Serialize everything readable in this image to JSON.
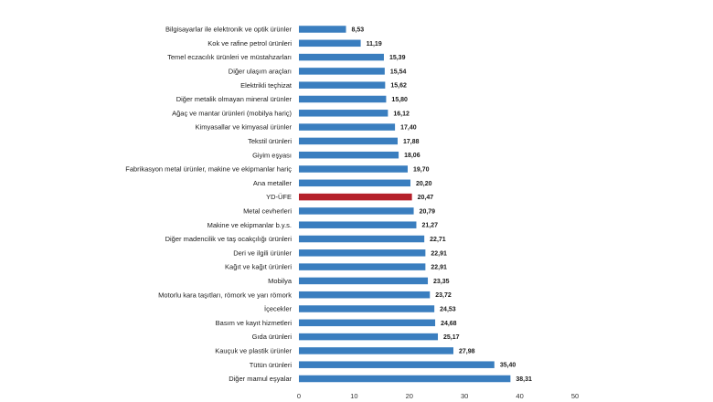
{
  "chart_data": {
    "type": "bar",
    "orientation": "horizontal",
    "title": "",
    "xlabel": "",
    "ylabel": "",
    "xlim": [
      0,
      50
    ],
    "xticks": [
      0,
      10,
      20,
      30,
      40,
      50
    ],
    "grid": false,
    "legend": "none",
    "colors": {
      "default": "#3a7ebf",
      "highlight": "#b5202a"
    },
    "highlight_category": "YD-ÜFE",
    "categories": [
      "Bilgisayarlar ile elektronik ve optik ürünler",
      "Kok ve rafine petrol ürünleri",
      "Temel eczacılık ürünleri ve müstahzarları",
      "Diğer ulaşım araçları",
      "Elektrikli teçhizat",
      "Diğer metalik olmayan mineral ürünler",
      "Ağaç ve mantar ürünleri (mobilya hariç)",
      "Kimyasallar ve kimyasal ürünler",
      "Tekstil ürünleri",
      "Giyim eşyası",
      "Fabrikasyon metal ürünler, makine ve ekipmanlar hariç",
      "Ana metaller",
      "YD-ÜFE",
      "Metal cevherleri",
      "Makine ve ekipmanlar b.y.s.",
      "Diğer madencilik ve taş ocakçılığı ürünleri",
      "Deri ve ilgili ürünler",
      "Kağıt ve kağıt ürünleri",
      "Mobilya",
      "Motorlu kara taşıtları, römork ve yarı römork",
      "İçecekler",
      "Basım ve kayıt hizmetleri",
      "Gıda ürünleri",
      "Kauçuk ve plastik ürünler",
      "Tütün ürünleri",
      "Diğer mamul eşyalar"
    ],
    "values": [
      8.53,
      11.19,
      15.39,
      15.54,
      15.62,
      15.8,
      16.12,
      17.4,
      17.88,
      18.06,
      19.7,
      20.2,
      20.47,
      20.79,
      21.27,
      22.71,
      22.91,
      22.91,
      23.35,
      23.72,
      24.53,
      24.68,
      25.17,
      27.98,
      35.4,
      38.31
    ],
    "value_labels": [
      "8,53",
      "11,19",
      "15,39",
      "15,54",
      "15,62",
      "15,80",
      "16,12",
      "17,40",
      "17,88",
      "18,06",
      "19,70",
      "20,20",
      "20,47",
      "20,79",
      "21,27",
      "22,71",
      "22,91",
      "22,91",
      "23,35",
      "23,72",
      "24,53",
      "24,68",
      "25,17",
      "27,98",
      "35,40",
      "38,31"
    ]
  }
}
